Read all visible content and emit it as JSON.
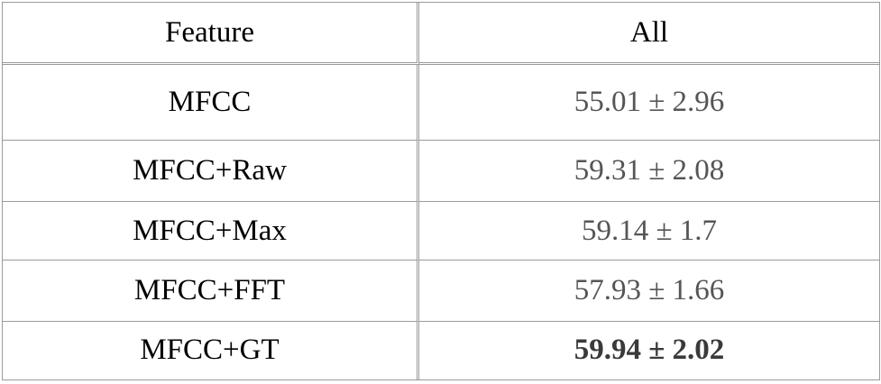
{
  "table": {
    "headers": [
      "Feature",
      "All"
    ],
    "rows": [
      {
        "feature": "MFCC",
        "all": "55.01 ± 2.96",
        "bold": false
      },
      {
        "feature": "MFCC+Raw",
        "all": "59.31 ± 2.08",
        "bold": false
      },
      {
        "feature": "MFCC+Max",
        "all": "59.14 ± 1.7",
        "bold": false
      },
      {
        "feature": "MFCC+FFT",
        "all": "57.93 ± 1.66",
        "bold": false
      },
      {
        "feature": "MFCC+GT",
        "all": "59.94 ± 2.02",
        "bold": true
      }
    ]
  }
}
